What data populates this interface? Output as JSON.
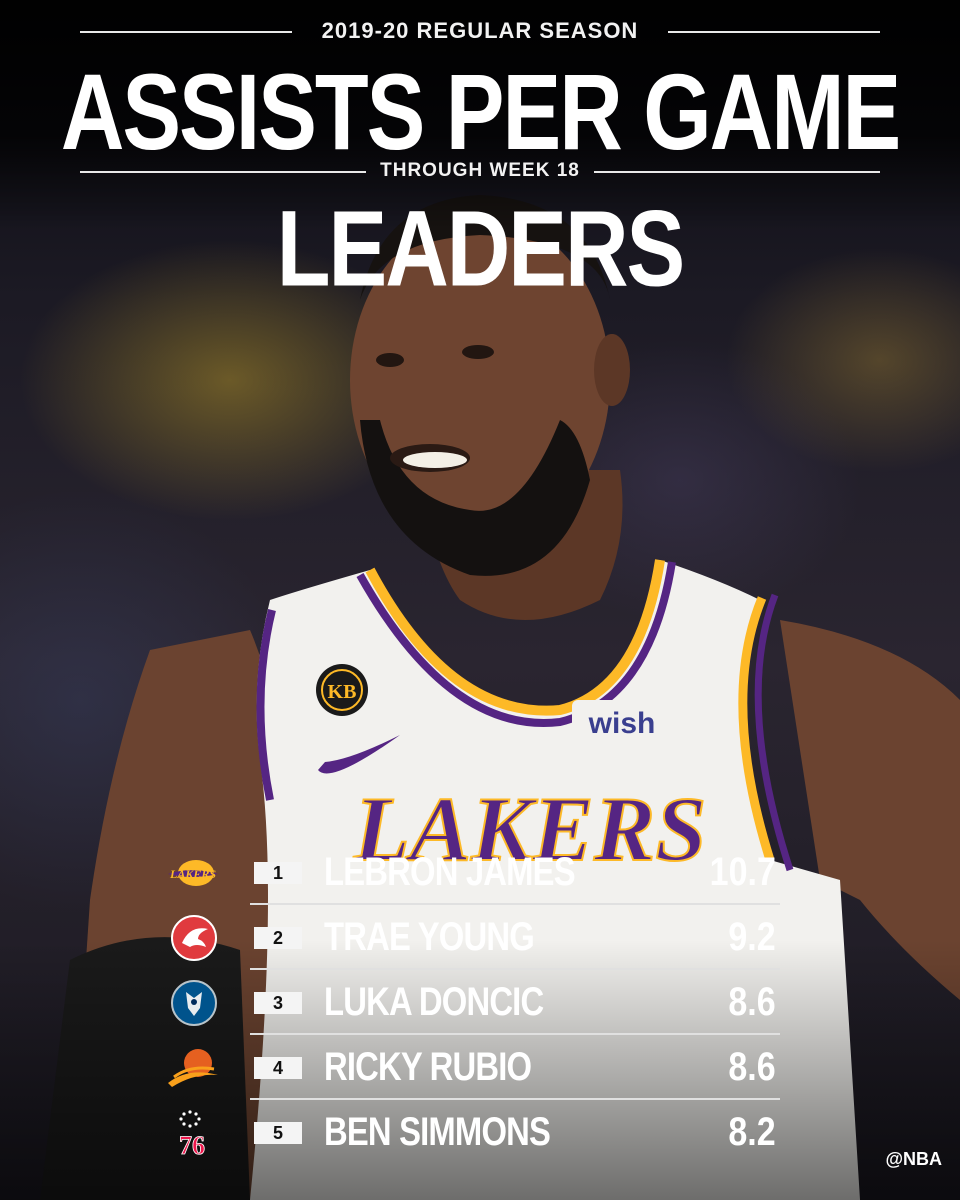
{
  "header": {
    "season": "2019-20 REGULAR SEASON",
    "title": "ASSISTS PER GAME LEADERS",
    "subtitle": "THROUGH WEEK 18"
  },
  "jersey": {
    "team": "LAKERS",
    "sponsor": "wish",
    "patch": "KB"
  },
  "leaders": [
    {
      "rank": "1",
      "name": "LEBRON JAMES",
      "value": "10.7",
      "team_icon": "lakers-logo-icon",
      "team_text": "LAKERS"
    },
    {
      "rank": "2",
      "name": "TRAE YOUNG",
      "value": "9.2",
      "team_icon": "hawks-logo-icon"
    },
    {
      "rank": "3",
      "name": "LUKA DONCIC",
      "value": "8.6",
      "team_icon": "mavericks-logo-icon"
    },
    {
      "rank": "4",
      "name": "RICKY RUBIO",
      "value": "8.6",
      "team_icon": "suns-logo-icon"
    },
    {
      "rank": "5",
      "name": "BEN SIMMONS",
      "value": "8.2",
      "team_icon": "sixers-logo-icon",
      "team_text": "76"
    }
  ],
  "footer": {
    "handle": "@NBA"
  },
  "colors": {
    "lakers_purple": "#552583",
    "lakers_gold": "#FDB927",
    "hawks_red": "#E03A3E",
    "mavs_blue": "#00538C",
    "suns_orange": "#E56020",
    "sixers_red": "#ED174C"
  }
}
